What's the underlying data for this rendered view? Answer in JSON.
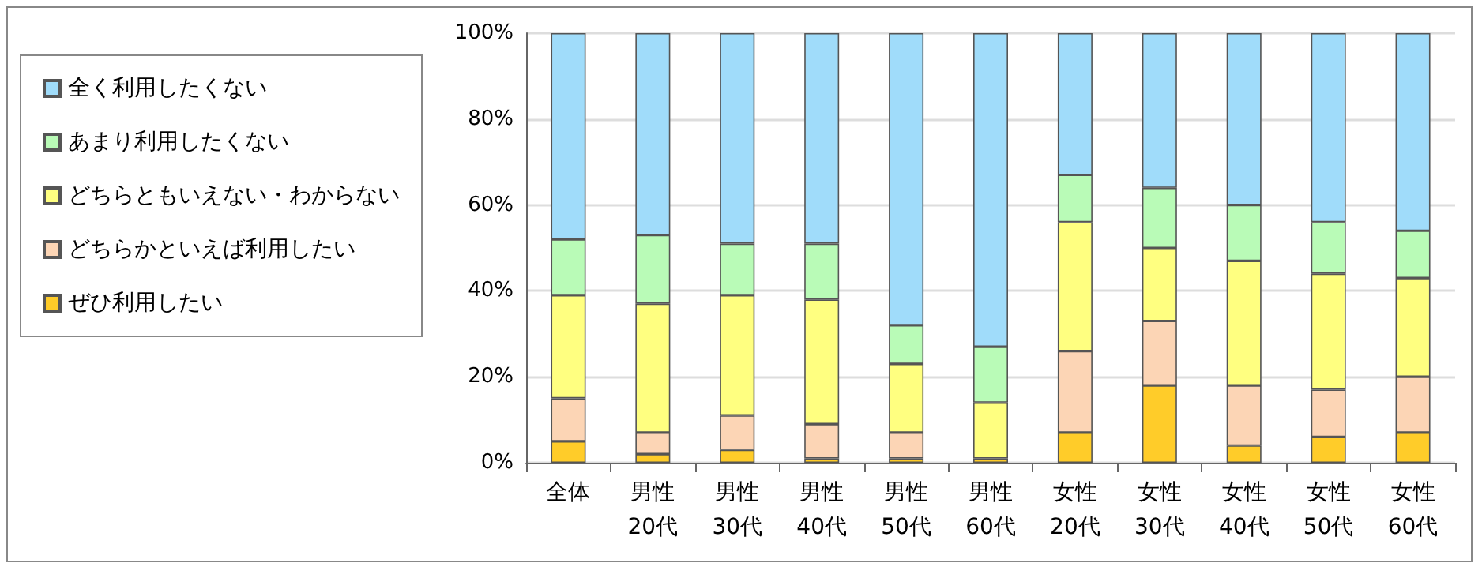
{
  "chart_data": {
    "type": "bar",
    "stacked": true,
    "legend": "left",
    "grid": "y",
    "categories": [
      "全体",
      "男性\n20代",
      "男性\n30代",
      "男性\n40代",
      "男性\n50代",
      "男性\n60代",
      "女性\n20代",
      "女性\n30代",
      "女性\n40代",
      "女性\n50代",
      "女性\n60代"
    ],
    "series": [
      {
        "name": "ぜひ利用したい",
        "color": "#ffcc29",
        "values": [
          5,
          2,
          3,
          1,
          1,
          1,
          7,
          18,
          4,
          6,
          7
        ]
      },
      {
        "name": "どちらかといえば利用したい",
        "color": "#fcd5b5",
        "values": [
          10,
          5,
          8,
          8,
          6,
          0,
          19,
          15,
          14,
          11,
          13
        ]
      },
      {
        "name": "どちらともいえない・わからない",
        "color": "#ffff80",
        "values": [
          24,
          30,
          28,
          29,
          16,
          13,
          30,
          17,
          29,
          27,
          23
        ]
      },
      {
        "name": "あまり利用したくない",
        "color": "#b9fbb7",
        "values": [
          13,
          16,
          12,
          13,
          9,
          13,
          11,
          14,
          13,
          12,
          11
        ]
      },
      {
        "name": "全く利用したくない",
        "color": "#a0dcfa",
        "values": [
          48,
          47,
          49,
          49,
          68,
          73,
          33,
          36,
          40,
          44,
          46
        ]
      }
    ],
    "ylim": [
      0,
      100
    ],
    "yticks": [
      {
        "value": 0,
        "label": "0%"
      },
      {
        "value": 20,
        "label": "20%"
      },
      {
        "value": 40,
        "label": "40%"
      },
      {
        "value": 60,
        "label": "60%"
      },
      {
        "value": 80,
        "label": "80%"
      },
      {
        "value": 100,
        "label": "100%"
      }
    ]
  }
}
